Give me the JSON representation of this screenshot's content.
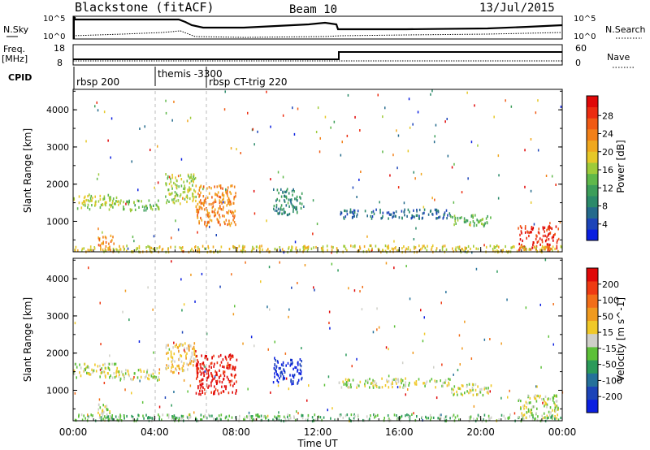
{
  "header": {
    "title": "Blackstone (fitACF)",
    "beam": "Beam 10",
    "date": "13/Jul/2015"
  },
  "noise_panel": {
    "left_label": "N.Sky",
    "right_label": "N.Search",
    "left_ticks": [
      "10^5",
      "10^0"
    ],
    "right_ticks": [
      "10^5",
      "10^0"
    ]
  },
  "freq_panel": {
    "left_label_1": "Freq.",
    "left_label_2": "[MHz]",
    "right_label": "Nave",
    "left_ticks": [
      "18",
      "8"
    ],
    "right_ticks": [
      "60",
      "0"
    ]
  },
  "cpid_panel": {
    "label": "CPID",
    "modes": [
      {
        "label": "rbsp 200",
        "start_hour": 0
      },
      {
        "label": "themis -3300",
        "start_hour": 4.0
      },
      {
        "label": "rbsp CT-trig 220",
        "start_hour": 6.5
      }
    ]
  },
  "chart_data": [
    {
      "type": "heatmap",
      "name": "power",
      "ylabel": "Slant Range [km]",
      "xlabel": "Time UT",
      "xlim_hours": [
        0,
        24
      ],
      "ylim": [
        180,
        4550
      ],
      "yticks": [
        "1000",
        "2000",
        "3000",
        "4000"
      ],
      "xticks": [
        "00:00",
        "04:00",
        "08:00",
        "12:00",
        "16:00",
        "20:00",
        "00:00"
      ],
      "colorbar": {
        "label": "Power [dB]",
        "ticks": [
          "4",
          "8",
          "12",
          "16",
          "20",
          "24",
          "28"
        ],
        "colors": [
          "#0a1fe0",
          "#1c44b8",
          "#246a8c",
          "#2b8a6a",
          "#3c9e5a",
          "#5fb84a",
          "#9ecb3a",
          "#e6c828",
          "#f0a81e",
          "#f28018",
          "#f05a14",
          "#ec2c10",
          "#e00808"
        ]
      },
      "regions": [
        {
          "t": [
            0.0,
            2.2
          ],
          "r": [
            1350,
            1750
          ],
          "level": 6
        },
        {
          "t": [
            2.2,
            4.2
          ],
          "r": [
            1300,
            1600
          ],
          "level": 5
        },
        {
          "t": [
            1.2,
            2.0
          ],
          "r": [
            200,
            650
          ],
          "level": 9
        },
        {
          "t": [
            4.5,
            6.0
          ],
          "r": [
            1500,
            2300
          ],
          "level": 6
        },
        {
          "t": [
            6.0,
            8.0
          ],
          "r": [
            900,
            2000
          ],
          "level": 9
        },
        {
          "t": [
            9.8,
            11.2
          ],
          "r": [
            1200,
            1900
          ],
          "level": 3
        },
        {
          "t": [
            13.0,
            18.5
          ],
          "r": [
            1100,
            1350
          ],
          "level": 2
        },
        {
          "t": [
            18.5,
            20.5
          ],
          "r": [
            900,
            1200
          ],
          "level": 5
        },
        {
          "t": [
            21.8,
            23.8
          ],
          "r": [
            250,
            900
          ],
          "level": 11
        },
        {
          "t": [
            0.0,
            24.0
          ],
          "r": [
            200,
            380
          ],
          "level": 7
        }
      ]
    },
    {
      "type": "heatmap",
      "name": "velocity",
      "ylabel": "Slant Range [km]",
      "xlabel": "Time UT",
      "xlim_hours": [
        0,
        24
      ],
      "ylim": [
        180,
        4550
      ],
      "yticks": [
        "1000",
        "2000",
        "3000",
        "4000"
      ],
      "xticks": [
        "00:00",
        "04:00",
        "08:00",
        "12:00",
        "16:00",
        "20:00",
        "00:00"
      ],
      "colorbar": {
        "label": "Velocity [m s^-1]",
        "ticks": [
          "200",
          "100",
          "50",
          "15",
          "-15",
          "-50",
          "-100",
          "-200"
        ],
        "colors": [
          "#0a1fe0",
          "#1c44b8",
          "#25719a",
          "#2b9a5a",
          "#5cc038",
          "#cfcfc8",
          "#f0c828",
          "#f09a1e",
          "#f26e18",
          "#ee3a12",
          "#e00808"
        ]
      },
      "regions": [
        {
          "t": [
            0.0,
            2.2
          ],
          "r": [
            1350,
            1750
          ],
          "level": 5
        },
        {
          "t": [
            2.2,
            4.2
          ],
          "r": [
            1300,
            1600
          ],
          "level": 5
        },
        {
          "t": [
            1.2,
            2.0
          ],
          "r": [
            200,
            650
          ],
          "level": 5
        },
        {
          "t": [
            4.5,
            6.0
          ],
          "r": [
            1500,
            2300
          ],
          "level": 6
        },
        {
          "t": [
            6.0,
            8.0
          ],
          "r": [
            900,
            2000
          ],
          "level": 10
        },
        {
          "t": [
            9.8,
            11.2
          ],
          "r": [
            1200,
            1900
          ],
          "level": 0
        },
        {
          "t": [
            13.0,
            18.5
          ],
          "r": [
            1100,
            1350
          ],
          "level": 5
        },
        {
          "t": [
            18.5,
            20.5
          ],
          "r": [
            900,
            1200
          ],
          "level": 5
        },
        {
          "t": [
            21.8,
            23.8
          ],
          "r": [
            250,
            900
          ],
          "level": 5
        },
        {
          "t": [
            0.0,
            24.0
          ],
          "r": [
            200,
            380
          ],
          "level": 4
        }
      ]
    }
  ]
}
